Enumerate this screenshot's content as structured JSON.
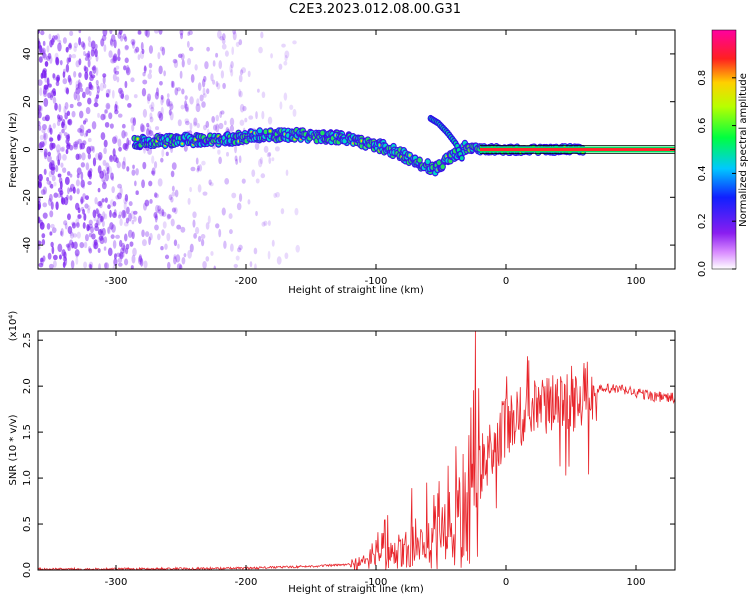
{
  "title": "C2E3.2023.012.08.00.G31",
  "colors": {
    "snr_line": "#e8242a",
    "freq_line": "#ff2a2a",
    "noise": "#7a1ff0",
    "axis": "#000000"
  },
  "chart_data": [
    {
      "type": "heatmap",
      "name": "spectrogram",
      "xlabel": "Height of straight line (km)",
      "ylabel": "Frequency (Hz)",
      "xlim": [
        -360,
        130
      ],
      "ylim": [
        -50,
        50
      ],
      "xticks": [
        -300,
        -200,
        -100,
        0,
        100
      ],
      "yticks": [
        40,
        20,
        0,
        -20,
        -40
      ],
      "colorbar": {
        "label": "Normalized spectral amplitude",
        "ticks": [
          "0.0",
          "0.2",
          "0.4",
          "0.6",
          "0.8"
        ],
        "range": [
          0,
          1
        ],
        "colormap": "rainbow (white-purple-blue-cyan-green-yellow-red-magenta)"
      },
      "signal_track": {
        "x": [
          -285,
          -250,
          -220,
          -190,
          -160,
          -130,
          -110,
          -95,
          -80,
          -70,
          -60,
          -55,
          -48,
          -40,
          -30,
          -20,
          0,
          20,
          40,
          60,
          100,
          130
        ],
        "freq": [
          3,
          4,
          4,
          6,
          6,
          5,
          3,
          1,
          -2,
          -5,
          -7,
          -8,
          -6,
          -2,
          1,
          0,
          0,
          0,
          0,
          0,
          0,
          0
        ]
      },
      "branch": {
        "x": [
          -58,
          -52,
          -45,
          -38,
          -33
        ],
        "freq": [
          13,
          11,
          7,
          2,
          -5
        ]
      }
    },
    {
      "type": "line",
      "name": "snr",
      "xlabel": "Height of straight line (km)",
      "ylabel": "SNR (10 * v/v)",
      "multiplier": "(x10⁴)",
      "xlim": [
        -360,
        130
      ],
      "ylim": [
        0,
        2.6
      ],
      "xticks": [
        -300,
        -200,
        -100,
        0,
        100
      ],
      "yticks": [
        "0.0",
        "0.5",
        "1.0",
        "1.5",
        "2.0",
        "2.5"
      ],
      "ytick_values": [
        0,
        0.5,
        1.0,
        1.5,
        2.0,
        2.5
      ],
      "envelope": {
        "x": [
          -360,
          -300,
          -200,
          -150,
          -120,
          -100,
          -90,
          -80,
          -70,
          -60,
          -50,
          -40,
          -30,
          -25,
          -20,
          -15,
          -10,
          0,
          10,
          20,
          30,
          40,
          50,
          60,
          70,
          80,
          90,
          100,
          110,
          120,
          130
        ],
        "y": [
          0.01,
          0.01,
          0.02,
          0.04,
          0.06,
          0.1,
          0.15,
          0.2,
          0.22,
          0.25,
          0.32,
          0.45,
          0.7,
          0.95,
          1.1,
          1.2,
          1.4,
          1.55,
          1.65,
          1.72,
          1.8,
          1.85,
          1.88,
          1.92,
          1.95,
          1.97,
          1.96,
          1.93,
          1.9,
          1.88,
          1.87
        ]
      }
    }
  ]
}
